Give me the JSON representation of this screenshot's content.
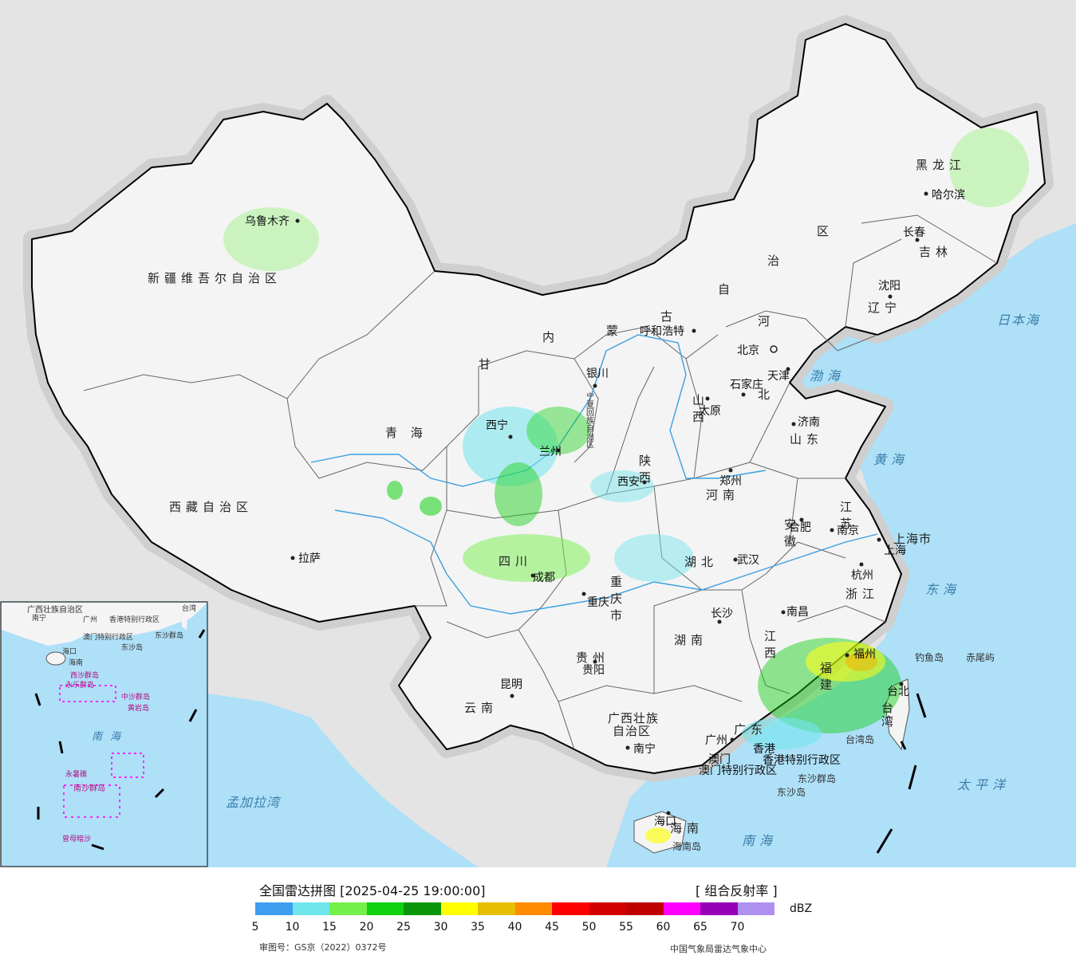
{
  "legend": {
    "title": "全国雷达拼图 [2025-04-25 19:00:00]",
    "product": "[ 组合反射率 ]",
    "unit": "dBZ",
    "ticks": [
      "5",
      "10",
      "15",
      "20",
      "25",
      "30",
      "35",
      "40",
      "45",
      "50",
      "55",
      "60",
      "65",
      "70"
    ],
    "colors": [
      "#3f9ef0",
      "#6ee6ec",
      "#74f04a",
      "#10d010",
      "#0a960a",
      "#ffff00",
      "#e6c000",
      "#ff8c00",
      "#ff0000",
      "#d20000",
      "#c00000",
      "#ff00ff",
      "#9600b4",
      "#ad90f0"
    ],
    "approval": "审图号：GS京（2022）0372号",
    "source": "中国气象局雷达气象中心"
  },
  "map": {
    "colors": {
      "land": "#f4f4f4",
      "sea": "#aee0f8",
      "outside": "#e4e4e4",
      "border": "#000000"
    },
    "provinces": [
      {
        "id": "xinjiang",
        "text": "新疆维吾尔自治区"
      },
      {
        "id": "xizang",
        "text": "西藏自治区"
      },
      {
        "id": "qinghai",
        "text": "青  海"
      },
      {
        "id": "gansu",
        "text": "甘"
      },
      {
        "id": "neimenggu-1",
        "text": "内"
      },
      {
        "id": "neimenggu-2",
        "text": "蒙"
      },
      {
        "id": "neimenggu-3",
        "text": "古"
      },
      {
        "id": "neimenggu-4",
        "text": "自"
      },
      {
        "id": "neimenggu-5",
        "text": "治"
      },
      {
        "id": "neimenggu-6",
        "text": "区"
      },
      {
        "id": "heilongjiang",
        "text": "黑龙江"
      },
      {
        "id": "jilin",
        "text": "吉林"
      },
      {
        "id": "liaoning",
        "text": "辽宁"
      },
      {
        "id": "hebei-1",
        "text": "河"
      },
      {
        "id": "hebei-2",
        "text": "北"
      },
      {
        "id": "shanxi",
        "text": "山西"
      },
      {
        "id": "shandong",
        "text": "山东"
      },
      {
        "id": "henan",
        "text": "河南"
      },
      {
        "id": "shaanxi",
        "text": "陕西"
      },
      {
        "id": "sichuan",
        "text": "四川"
      },
      {
        "id": "chongqing",
        "text": "重庆市"
      },
      {
        "id": "hubei",
        "text": "湖北"
      },
      {
        "id": "hunan",
        "text": "湖南"
      },
      {
        "id": "jiangxi",
        "text": "江西"
      },
      {
        "id": "anhui",
        "text": "安徽"
      },
      {
        "id": "jiangsu",
        "text": "江苏"
      },
      {
        "id": "zhejiang",
        "text": "浙江"
      },
      {
        "id": "fujian",
        "text": "福建"
      },
      {
        "id": "guangdong",
        "text": "广东"
      },
      {
        "id": "guangxi-1",
        "text": "广西壮族"
      },
      {
        "id": "guangxi-2",
        "text": "自治区"
      },
      {
        "id": "guizhou",
        "text": "贵州"
      },
      {
        "id": "yunnan",
        "text": "云南"
      },
      {
        "id": "hainan",
        "text": "海南"
      },
      {
        "id": "taiwan",
        "text": "台湾"
      },
      {
        "id": "shanghai",
        "text": "上海市"
      },
      {
        "id": "ningxia",
        "text": "宁夏回族自治区"
      },
      {
        "id": "hongkong",
        "text": "香港特别行政区"
      },
      {
        "id": "macau",
        "text": "澳门特别行政区"
      }
    ],
    "cities": [
      {
        "id": "urumqi",
        "name": "乌鲁木齐"
      },
      {
        "id": "lhasa",
        "name": "拉萨"
      },
      {
        "id": "xining",
        "name": "西宁"
      },
      {
        "id": "lanzhou",
        "name": "兰州"
      },
      {
        "id": "yinchuan",
        "name": "银川"
      },
      {
        "id": "hohhot",
        "name": "呼和浩特"
      },
      {
        "id": "beijing",
        "name": "北京"
      },
      {
        "id": "tianjin",
        "name": "天津"
      },
      {
        "id": "shijiazhuang",
        "name": "石家庄"
      },
      {
        "id": "taiyuan",
        "name": "太原"
      },
      {
        "id": "jinan",
        "name": "济南"
      },
      {
        "id": "zhengzhou",
        "name": "郑州"
      },
      {
        "id": "xian",
        "name": "西安"
      },
      {
        "id": "chengdu",
        "name": "成都"
      },
      {
        "id": "chongqing-city",
        "name": "重庆"
      },
      {
        "id": "wuhan",
        "name": "武汉"
      },
      {
        "id": "hefei",
        "name": "合肥"
      },
      {
        "id": "nanjing",
        "name": "南京"
      },
      {
        "id": "shanghai-city",
        "name": "上海"
      },
      {
        "id": "hangzhou",
        "name": "杭州"
      },
      {
        "id": "nanchang",
        "name": "南昌"
      },
      {
        "id": "changsha",
        "name": "长沙"
      },
      {
        "id": "guiyang",
        "name": "贵阳"
      },
      {
        "id": "kunming",
        "name": "昆明"
      },
      {
        "id": "nanning",
        "name": "南宁"
      },
      {
        "id": "guangzhou",
        "name": "广州"
      },
      {
        "id": "fuzhou",
        "name": "福州"
      },
      {
        "id": "taibei",
        "name": "台北"
      },
      {
        "id": "haikou",
        "name": "海口"
      },
      {
        "id": "harbin",
        "name": "哈尔滨"
      },
      {
        "id": "changchun",
        "name": "长春"
      },
      {
        "id": "shenyang",
        "name": "沈阳"
      },
      {
        "id": "hongkong-city",
        "name": "香港"
      },
      {
        "id": "macau-city",
        "name": "澳门"
      }
    ],
    "seas": [
      {
        "id": "bohai",
        "name": "渤海"
      },
      {
        "id": "huanghai",
        "name": "黄海"
      },
      {
        "id": "donghai",
        "name": "东海"
      },
      {
        "id": "nanhai",
        "name": "南海"
      },
      {
        "id": "taipingyang",
        "name": "太平洋"
      },
      {
        "id": "ribenhai",
        "name": "日本海"
      },
      {
        "id": "mengjialawan",
        "name": "孟加拉湾"
      }
    ],
    "islands": [
      {
        "id": "diaoyudao",
        "name": "钓鱼岛"
      },
      {
        "id": "chiweiyu",
        "name": "赤尾屿"
      },
      {
        "id": "taiwandao",
        "name": "台湾岛"
      },
      {
        "id": "dongshaqundao",
        "name": "东沙群岛"
      },
      {
        "id": "dongshadao",
        "name": "东沙岛"
      },
      {
        "id": "hainandao",
        "name": "海南岛"
      }
    ],
    "inset": {
      "labels": [
        "广西壮族自治区",
        "南宁",
        "广州",
        "香港特别行政区",
        "澳门特别行政区",
        "台湾",
        "东沙群岛",
        "东沙岛",
        "海口",
        "海南",
        "西沙群岛",
        "永乐群岛",
        "中沙群岛",
        "黄岩岛",
        "南海",
        "永暑礁",
        "南沙群岛",
        "曾母暗沙"
      ]
    }
  }
}
